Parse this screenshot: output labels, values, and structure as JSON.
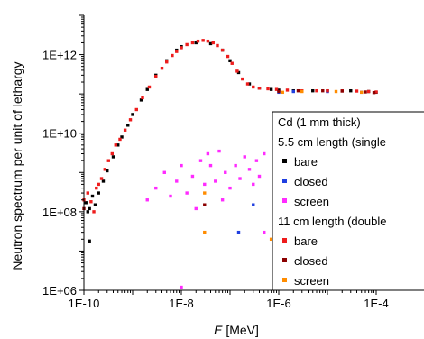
{
  "chart_data": {
    "type": "scatter",
    "title": "",
    "xlabel_italic": "E",
    "xlabel_unit": " [MeV]",
    "ylabel": "Neutron spectrum per unit of lethargy",
    "x_scale": "log",
    "y_scale": "log",
    "xlim": [
      1e-10,
      0.0001
    ],
    "ylim": [
      1000000.0,
      10000000000000.0
    ],
    "x_ticks": [
      {
        "value": 1e-10,
        "label": "1E-10"
      },
      {
        "value": 1e-08,
        "label": "1E-8"
      },
      {
        "value": 1e-06,
        "label": "1E-6"
      },
      {
        "value": 0.0001,
        "label": "1E-4"
      }
    ],
    "y_ticks": [
      {
        "value": 1000000.0,
        "label": "1E+06"
      },
      {
        "value": 100000000.0,
        "label": "1E+08"
      },
      {
        "value": 10000000000.0,
        "label": "1E+10"
      },
      {
        "value": 1000000000000.0,
        "label": "1E+12"
      }
    ],
    "legend_placement": "right",
    "legend": {
      "title": "Cd (1 mm thick)",
      "group1_label": "5.5 cm length (single",
      "group2_label": "11 cm length (double"
    },
    "series": [
      {
        "name": "bare",
        "group": 1,
        "color": "#000000",
        "points": [
          [
            1.1e-10,
            170000000.0
          ],
          [
            1.3e-10,
            120000000.0
          ],
          [
            1.5e-10,
            250000000.0
          ],
          [
            1.7e-10,
            150000000.0
          ],
          [
            1.2e-10,
            100000000.0
          ],
          [
            2e-10,
            300000000.0
          ],
          [
            2.5e-10,
            600000000.0
          ],
          [
            3e-10,
            1100000000.0
          ],
          [
            4e-10,
            2500000000.0
          ],
          [
            5e-10,
            5000000000.0
          ],
          [
            6e-10,
            8000000000.0
          ],
          [
            8e-10,
            16000000000.0
          ],
          [
            1e-09,
            30000000000.0
          ],
          [
            1.5e-09,
            70000000000.0
          ],
          [
            2e-09,
            130000000000.0
          ],
          [
            3e-09,
            300000000000.0
          ],
          [
            5e-09,
            700000000000.0
          ],
          [
            8e-09,
            1300000000000.0
          ],
          [
            1e-08,
            1600000000000.0
          ],
          [
            2e-08,
            2000000000000.0
          ],
          [
            4e-08,
            1900000000000.0
          ],
          [
            7e-08,
            1300000000000.0
          ],
          [
            1e-07,
            700000000000.0
          ],
          [
            1.5e-07,
            350000000000.0
          ],
          [
            2.5e-07,
            180000000000.0
          ],
          [
            4e-07,
            140000000000.0
          ],
          [
            7e-07,
            130000000000.0
          ],
          [
            1e-06,
            125000000000.0
          ],
          [
            2e-06,
            120000000000.0
          ],
          [
            5e-06,
            120000000000.0
          ],
          [
            1e-05,
            120000000000.0
          ],
          [
            3e-05,
            120000000000.0
          ],
          [
            7e-05,
            115000000000.0
          ],
          [
            0.0001,
            110000000000.0
          ],
          [
            1.3e-10,
            18000000.0
          ]
        ]
      },
      {
        "name": "closed",
        "group": 1,
        "color": "#1f3fe0",
        "points": [
          [
            1e-06,
            110000000000.0
          ],
          [
            2e-06,
            115000000000.0
          ],
          [
            1e-05,
            115000000000.0
          ],
          [
            5e-05,
            110000000000.0
          ],
          [
            1.5e-07,
            30000000.0
          ],
          [
            3e-07,
            150000000.0
          ]
        ]
      },
      {
        "name": "screen",
        "group": 1,
        "color": "#ff2bff",
        "points": [
          [
            3e-09,
            400000000.0
          ],
          [
            4.5e-09,
            1000000000.0
          ],
          [
            6e-09,
            250000000.0
          ],
          [
            8e-09,
            600000000.0
          ],
          [
            1e-08,
            1500000000.0
          ],
          [
            1.3e-08,
            300000000.0
          ],
          [
            1.7e-08,
            800000000.0
          ],
          [
            2e-08,
            120000000.0
          ],
          [
            2.5e-08,
            2000000000.0
          ],
          [
            3e-08,
            500000000.0
          ],
          [
            3.5e-08,
            3000000000.0
          ],
          [
            4e-08,
            1500000000.0
          ],
          [
            5e-08,
            600000000.0
          ],
          [
            6e-08,
            3500000000.0
          ],
          [
            7e-08,
            200000000.0
          ],
          [
            8e-08,
            1000000000.0
          ],
          [
            1e-07,
            400000000.0
          ],
          [
            1.3e-07,
            1500000000.0
          ],
          [
            1.6e-07,
            700000000.0
          ],
          [
            2e-07,
            2500000000.0
          ],
          [
            2.5e-07,
            1200000000.0
          ],
          [
            3e-07,
            500000000.0
          ],
          [
            3.5e-07,
            2000000000.0
          ],
          [
            4e-07,
            800000000.0
          ],
          [
            5e-07,
            3000000000.0
          ],
          [
            1e-08,
            1200000.0
          ],
          [
            2e-09,
            200000000.0
          ],
          [
            5e-07,
            30000000.0
          ]
        ]
      },
      {
        "name": "bare",
        "group": 2,
        "color": "#ee1c1c",
        "points": [
          [
            1e-10,
            200000000.0
          ],
          [
            1.2e-10,
            300000000.0
          ],
          [
            1.4e-10,
            180000000.0
          ],
          [
            1.6e-10,
            100000000.0
          ],
          [
            1.8e-10,
            400000000.0
          ],
          [
            2e-10,
            500000000.0
          ],
          [
            2.3e-10,
            700000000.0
          ],
          [
            2.7e-10,
            1200000000.0
          ],
          [
            3.2e-10,
            2000000000.0
          ],
          [
            3.8e-10,
            3000000000.0
          ],
          [
            4.5e-10,
            5000000000.0
          ],
          [
            5.5e-10,
            7000000000.0
          ],
          [
            7e-10,
            12000000000.0
          ],
          [
            9e-10,
            22000000000.0
          ],
          [
            1.2e-09,
            40000000000.0
          ],
          [
            1.6e-09,
            80000000000.0
          ],
          [
            2.2e-09,
            150000000000.0
          ],
          [
            3e-09,
            280000000000.0
          ],
          [
            4e-09,
            450000000000.0
          ],
          [
            5e-09,
            650000000000.0
          ],
          [
            6.5e-09,
            950000000000.0
          ],
          [
            8e-09,
            1200000000000.0
          ],
          [
            1e-08,
            1500000000000.0
          ],
          [
            1.3e-08,
            1800000000000.0
          ],
          [
            1.7e-08,
            2000000000000.0
          ],
          [
            2.2e-08,
            2200000000000.0
          ],
          [
            2.8e-08,
            2300000000000.0
          ],
          [
            3.5e-08,
            2200000000000.0
          ],
          [
            4.5e-08,
            2000000000000.0
          ],
          [
            5.5e-08,
            1700000000000.0
          ],
          [
            7e-08,
            1300000000000.0
          ],
          [
            9e-08,
            900000000000.0
          ],
          [
            1.1e-07,
            600000000000.0
          ],
          [
            1.4e-07,
            380000000000.0
          ],
          [
            1.8e-07,
            240000000000.0
          ],
          [
            2.3e-07,
            180000000000.0
          ],
          [
            3e-07,
            150000000000.0
          ],
          [
            4e-07,
            140000000000.0
          ],
          [
            6e-07,
            135000000000.0
          ],
          [
            9e-07,
            130000000000.0
          ],
          [
            1.5e-06,
            125000000000.0
          ],
          [
            3e-06,
            120000000000.0
          ],
          [
            6e-06,
            120000000000.0
          ],
          [
            1e-05,
            120000000000.0
          ],
          [
            2e-05,
            120000000000.0
          ],
          [
            4e-05,
            118000000000.0
          ],
          [
            7e-05,
            115000000000.0
          ],
          [
            0.0001,
            112000000000.0
          ]
        ]
      },
      {
        "name": "closed",
        "group": 2,
        "color": "#8b0000",
        "points": [
          [
            1e-06,
            115000000000.0
          ],
          [
            2.5e-06,
            120000000000.0
          ],
          [
            8e-06,
            120000000000.0
          ],
          [
            2e-05,
            118000000000.0
          ],
          [
            6e-05,
            112000000000.0
          ],
          [
            9e-05,
            108000000000.0
          ],
          [
            1e-10,
            120000000.0
          ],
          [
            3e-08,
            150000000.0
          ]
        ]
      },
      {
        "name": "screen",
        "group": 2,
        "color": "#ff8c00",
        "points": [
          [
            1.2e-06,
            110000000000.0
          ],
          [
            3e-06,
            115000000000.0
          ],
          [
            1.5e-05,
            115000000000.0
          ],
          [
            5e-05,
            110000000000.0
          ],
          [
            3e-08,
            30000000.0
          ],
          [
            3e-08,
            300000000.0
          ],
          [
            7e-07,
            20000000.0
          ]
        ]
      }
    ]
  }
}
